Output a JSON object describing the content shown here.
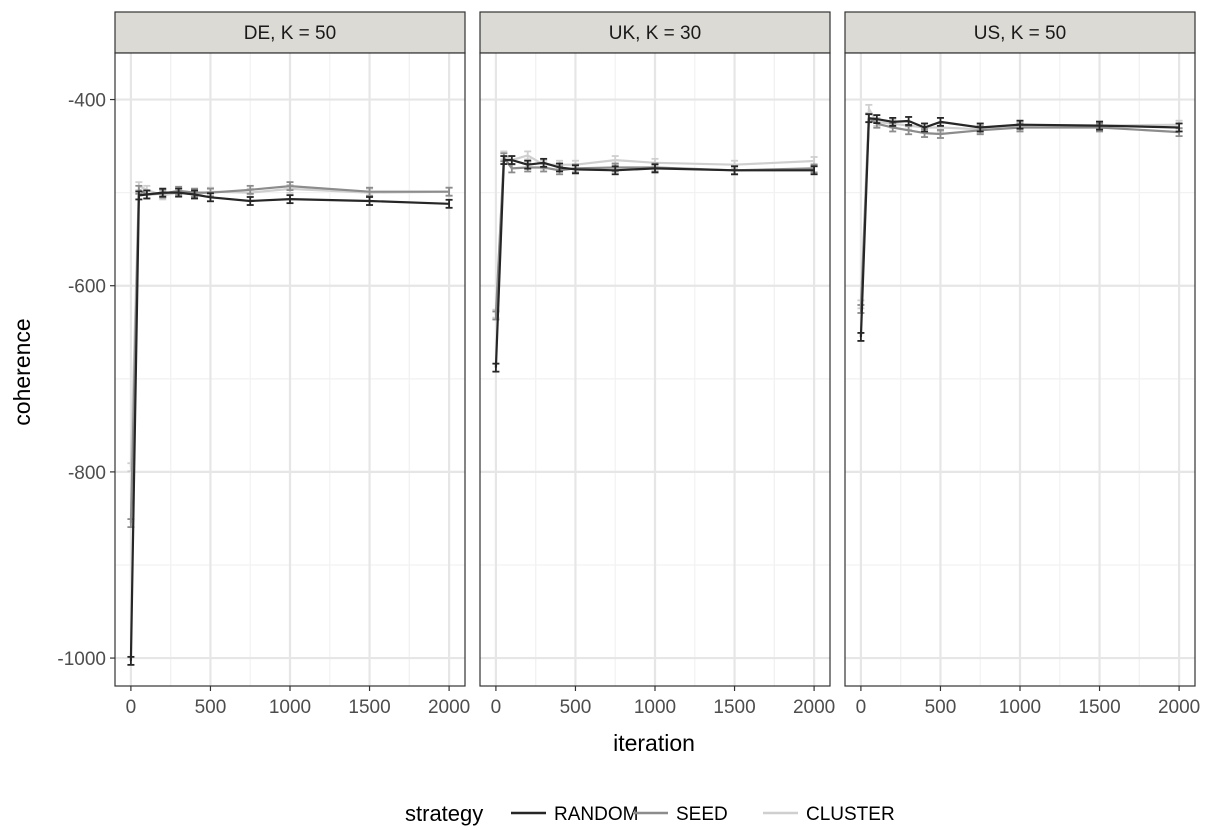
{
  "chart_data": {
    "type": "line",
    "xlabel": "iteration",
    "ylabel": "coherence",
    "xlim": [
      -100,
      2100
    ],
    "ylim": [
      -1030,
      -350
    ],
    "x_ticks": [
      0,
      500,
      1000,
      1500,
      2000
    ],
    "x_tick_labels": [
      "0",
      "500",
      "1000",
      "1500",
      "2000"
    ],
    "y_ticks": [
      -400,
      -600,
      -800,
      -1000
    ],
    "y_tick_labels": [
      "-400",
      "-600",
      "-800",
      "-1000"
    ],
    "grid": true,
    "legend": {
      "title": "strategy",
      "position": "bottom",
      "entries": [
        {
          "name": "RANDOM",
          "color": "#262626"
        },
        {
          "name": "SEED",
          "color": "#8c8c8c"
        },
        {
          "name": "CLUSTER",
          "color": "#cfcfcf"
        }
      ]
    },
    "x": [
      0,
      50,
      100,
      200,
      300,
      400,
      500,
      750,
      1000,
      1500,
      2000
    ],
    "panels": [
      {
        "label": "DE, K = 50",
        "series": [
          {
            "name": "RANDOM",
            "values": [
              -1003,
              -503,
              -502,
              -500,
              -500,
              -502,
              -505,
              -509,
              -507,
              -509,
              -512
            ]
          },
          {
            "name": "SEED",
            "values": [
              -855,
              -497,
              -502,
              -501,
              -498,
              -500,
              -500,
              -497,
              -493,
              -499,
              -499
            ]
          },
          {
            "name": "CLUSTER",
            "values": [
              -795,
              -493,
              -497,
              -503,
              -500,
              -502,
              -499,
              -500,
              -496,
              -500,
              -499
            ]
          }
        ]
      },
      {
        "label": "UK, K = 30",
        "series": [
          {
            "name": "RANDOM",
            "values": [
              -688,
              -465,
              -465,
              -470,
              -468,
              -473,
              -475,
              -476,
              -474,
              -476,
              -476
            ]
          },
          {
            "name": "SEED",
            "values": [
              -632,
              -462,
              -474,
              -473,
              -473,
              -476,
              -474,
              -473,
              -473,
              -476,
              -474
            ]
          },
          {
            "name": "CLUSTER",
            "values": [
              -630,
              -460,
              -465,
              -460,
              -470,
              -470,
              -470,
              -465,
              -468,
              -470,
              -466
            ]
          }
        ]
      },
      {
        "label": "US, K = 50",
        "series": [
          {
            "name": "RANDOM",
            "values": [
              -655,
              -420,
              -421,
              -424,
              -423,
              -430,
              -424,
              -430,
              -427,
              -428,
              -430
            ]
          },
          {
            "name": "SEED",
            "values": [
              -625,
              -420,
              -426,
              -430,
              -433,
              -436,
              -437,
              -433,
              -430,
              -430,
              -435
            ]
          },
          {
            "name": "CLUSTER",
            "values": [
              -620,
              -410,
              -424,
              -426,
              -428,
              -430,
              -430,
              -432,
              -428,
              -428,
              -427
            ]
          }
        ]
      }
    ]
  }
}
